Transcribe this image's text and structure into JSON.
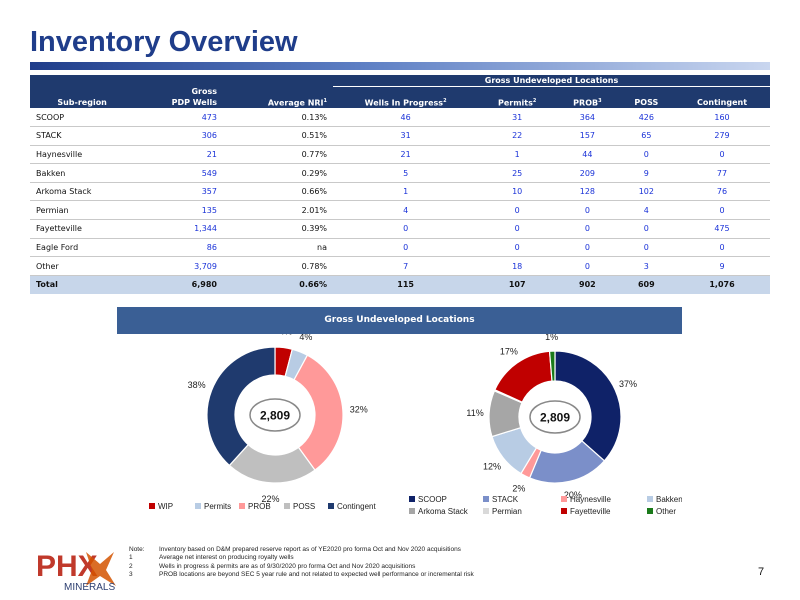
{
  "page": {
    "title": "Inventory Overview",
    "page_number": "7"
  },
  "table": {
    "group_header": "Gross Undeveloped Locations",
    "columns": {
      "subregion": "Sub-region",
      "gross_top": "Gross",
      "gross_bottom": "PDP Wells",
      "nri": "Average NRI",
      "wip": "Wells In Progress",
      "permits": "Permits",
      "prob": "PROB",
      "poss": "POSS",
      "contingent": "Contingent"
    },
    "superscripts": {
      "nri": "1",
      "wip": "2",
      "permits": "2",
      "prob": "3"
    },
    "rows": [
      {
        "name": "SCOOP",
        "pdp": "473",
        "nri": "0.13%",
        "wip": "46",
        "permits": "31",
        "prob": "364",
        "poss": "426",
        "contingent": "160"
      },
      {
        "name": "STACK",
        "pdp": "306",
        "nri": "0.51%",
        "wip": "31",
        "permits": "22",
        "prob": "157",
        "poss": "65",
        "contingent": "279"
      },
      {
        "name": "Haynesville",
        "pdp": "21",
        "nri": "0.77%",
        "wip": "21",
        "permits": "1",
        "prob": "44",
        "poss": "0",
        "contingent": "0"
      },
      {
        "name": "Bakken",
        "pdp": "549",
        "nri": "0.29%",
        "wip": "5",
        "permits": "25",
        "prob": "209",
        "poss": "9",
        "contingent": "77"
      },
      {
        "name": "Arkoma Stack",
        "pdp": "357",
        "nri": "0.66%",
        "wip": "1",
        "permits": "10",
        "prob": "128",
        "poss": "102",
        "contingent": "76"
      },
      {
        "name": "Permian",
        "pdp": "135",
        "nri": "2.01%",
        "wip": "4",
        "permits": "0",
        "prob": "0",
        "poss": "4",
        "contingent": "0"
      },
      {
        "name": "Fayetteville",
        "pdp": "1,344",
        "nri": "0.39%",
        "wip": "0",
        "permits": "0",
        "prob": "0",
        "poss": "0",
        "contingent": "475"
      },
      {
        "name": "Eagle Ford",
        "pdp": "86",
        "nri": "na",
        "wip": "0",
        "permits": "0",
        "prob": "0",
        "poss": "0",
        "contingent": "0"
      },
      {
        "name": "Other",
        "pdp": "3,709",
        "nri": "0.78%",
        "wip": "7",
        "permits": "18",
        "prob": "0",
        "poss": "3",
        "contingent": "9"
      }
    ],
    "total": {
      "name": "Total",
      "pdp": "6,980",
      "nri": "0.66%",
      "wip": "115",
      "permits": "107",
      "prob": "902",
      "poss": "609",
      "contingent": "1,076"
    }
  },
  "chart_section": {
    "title": "Gross Undeveloped Locations"
  },
  "chart_data": [
    {
      "type": "pie",
      "center_label": "2,809",
      "categories": [
        "WIP",
        "Permits",
        "PROB",
        "POSS",
        "Contingent"
      ],
      "values": [
        115,
        107,
        902,
        609,
        1076
      ],
      "labels": [
        "4%",
        "4%",
        "32%",
        "22%",
        "38%"
      ],
      "colors": [
        "#c00000",
        "#b8cce4",
        "#ff9999",
        "#bfbfbf",
        "#1f3a6e"
      ]
    },
    {
      "type": "pie",
      "center_label": "2,809",
      "categories": [
        "SCOOP",
        "STACK",
        "Haynesville",
        "Bakken",
        "Arkoma Stack",
        "Permian",
        "Fayetteville",
        "Other"
      ],
      "values": [
        1027,
        554,
        66,
        325,
        317,
        8,
        475,
        37
      ],
      "labels": [
        "37%",
        "20%",
        "2%",
        "12%",
        "11%",
        "",
        "17%",
        "1%"
      ],
      "colors": [
        "#0f2268",
        "#7b8fc9",
        "#ff9999",
        "#b8cce4",
        "#a6a6a6",
        "#d9d9d9",
        "#c00000",
        "#1a7a1a"
      ]
    }
  ],
  "notes": {
    "label": "Note:",
    "lines": [
      {
        "k": "",
        "text": "Inventory based on D&M prepared reserve report as of YE2020 pro forma Oct and Nov 2020 acquisitions"
      },
      {
        "k": "1",
        "text": "Average net interest on producing royalty wells"
      },
      {
        "k": "2",
        "text": "Wells in progress & permits are as of 9/30/2020 pro forma Oct and Nov 2020 acquisitions"
      },
      {
        "k": "3",
        "text": "PROB locations are beyond SEC 5 year rule and not related to expected well performance or incremental risk"
      }
    ]
  },
  "logo": {
    "text_main": "PHX",
    "text_sub": "MINERALS"
  }
}
